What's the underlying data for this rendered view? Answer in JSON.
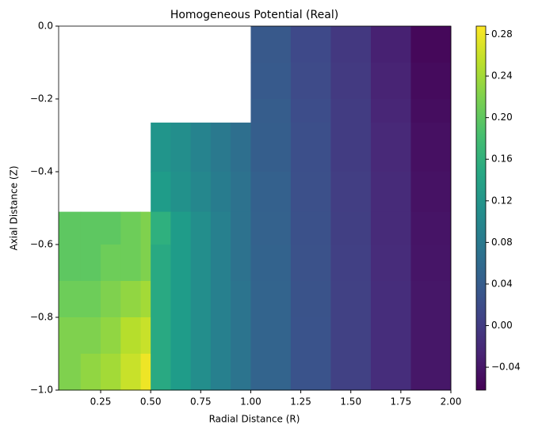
{
  "chart_data": {
    "type": "contour",
    "title": "Homogeneous Potential (Real)",
    "x_label": "Radial Distance (R)",
    "y_label": "Axial Distance (Z)",
    "colormap": "viridis",
    "x_edges": [
      0.04,
      0.15,
      0.25,
      0.35,
      0.45,
      0.5,
      0.6,
      0.7,
      0.8,
      0.9,
      1.0,
      1.2,
      1.4,
      1.6,
      1.8,
      2.0
    ],
    "y_edges": [
      0,
      -0.1,
      -0.2,
      -0.265,
      -0.4,
      -0.51,
      -0.6,
      -0.7,
      -0.8,
      -0.9,
      -1.0
    ],
    "z": [
      [
        null,
        null,
        null,
        null,
        null,
        null,
        null,
        null,
        null,
        null,
        0.035,
        0.015,
        -0.005,
        -0.03,
        -0.055
      ],
      [
        null,
        null,
        null,
        null,
        null,
        null,
        null,
        null,
        null,
        null,
        0.037,
        0.017,
        -0.003,
        -0.027,
        -0.052
      ],
      [
        null,
        null,
        null,
        null,
        null,
        null,
        null,
        null,
        null,
        null,
        0.04,
        0.02,
        0.0,
        -0.025,
        -0.05
      ],
      [
        null,
        null,
        null,
        null,
        null,
        0.12,
        0.11,
        0.095,
        0.08,
        0.065,
        0.042,
        0.022,
        0.0,
        -0.022,
        -0.047
      ],
      [
        null,
        null,
        null,
        null,
        null,
        0.13,
        0.115,
        0.1,
        0.085,
        0.07,
        0.045,
        0.023,
        0.002,
        -0.02,
        -0.045
      ],
      [
        0.2,
        0.2,
        0.2,
        0.21,
        0.22,
        0.16,
        0.13,
        0.11,
        0.09,
        0.07,
        0.047,
        0.025,
        0.003,
        -0.02,
        -0.043
      ],
      [
        0.2,
        0.2,
        0.21,
        0.21,
        0.22,
        0.15,
        0.13,
        0.11,
        0.09,
        0.07,
        0.048,
        0.026,
        0.004,
        -0.018,
        -0.042
      ],
      [
        0.21,
        0.21,
        0.22,
        0.23,
        0.24,
        0.15,
        0.13,
        0.11,
        0.09,
        0.072,
        0.05,
        0.027,
        0.005,
        -0.017,
        -0.04
      ],
      [
        0.22,
        0.22,
        0.23,
        0.25,
        0.26,
        0.15,
        0.13,
        0.11,
        0.09,
        0.072,
        0.05,
        0.028,
        0.005,
        -0.017,
        -0.04
      ],
      [
        0.22,
        0.23,
        0.24,
        0.26,
        0.28,
        0.15,
        0.13,
        0.11,
        0.09,
        0.072,
        0.05,
        0.028,
        0.005,
        -0.017,
        -0.04
      ]
    ],
    "xlim": [
      0.04,
      2.0
    ],
    "xticks": [
      0.25,
      {
        "value": 0.5,
        "label": "0.50"
      },
      0.75,
      {
        "value": 1.0,
        "label": "1.00"
      },
      1.25,
      {
        "value": 1.5,
        "label": "1.50"
      },
      1.75,
      {
        "value": 2.0,
        "label": "2.00"
      }
    ],
    "ylim": [
      -1.0,
      0
    ],
    "yticks": [
      {
        "value": 0,
        "label": "0.0"
      },
      {
        "value": -0.2,
        "label": "−0.2"
      },
      {
        "value": -0.4,
        "label": "−0.4"
      },
      {
        "value": -0.6,
        "label": "−0.6"
      },
      {
        "value": -0.8,
        "label": "−0.8"
      },
      {
        "value": -1.0,
        "label": "−1.0"
      }
    ],
    "clim": [
      -0.062,
      0.288
    ],
    "cticks": [
      {
        "value": -0.04,
        "label": "−0.04"
      },
      {
        "value": 0,
        "label": "0.00"
      },
      0.04,
      0.08,
      0.12,
      0.16,
      {
        "value": 0.2,
        "label": "0.20"
      },
      0.24,
      0.28
    ]
  }
}
